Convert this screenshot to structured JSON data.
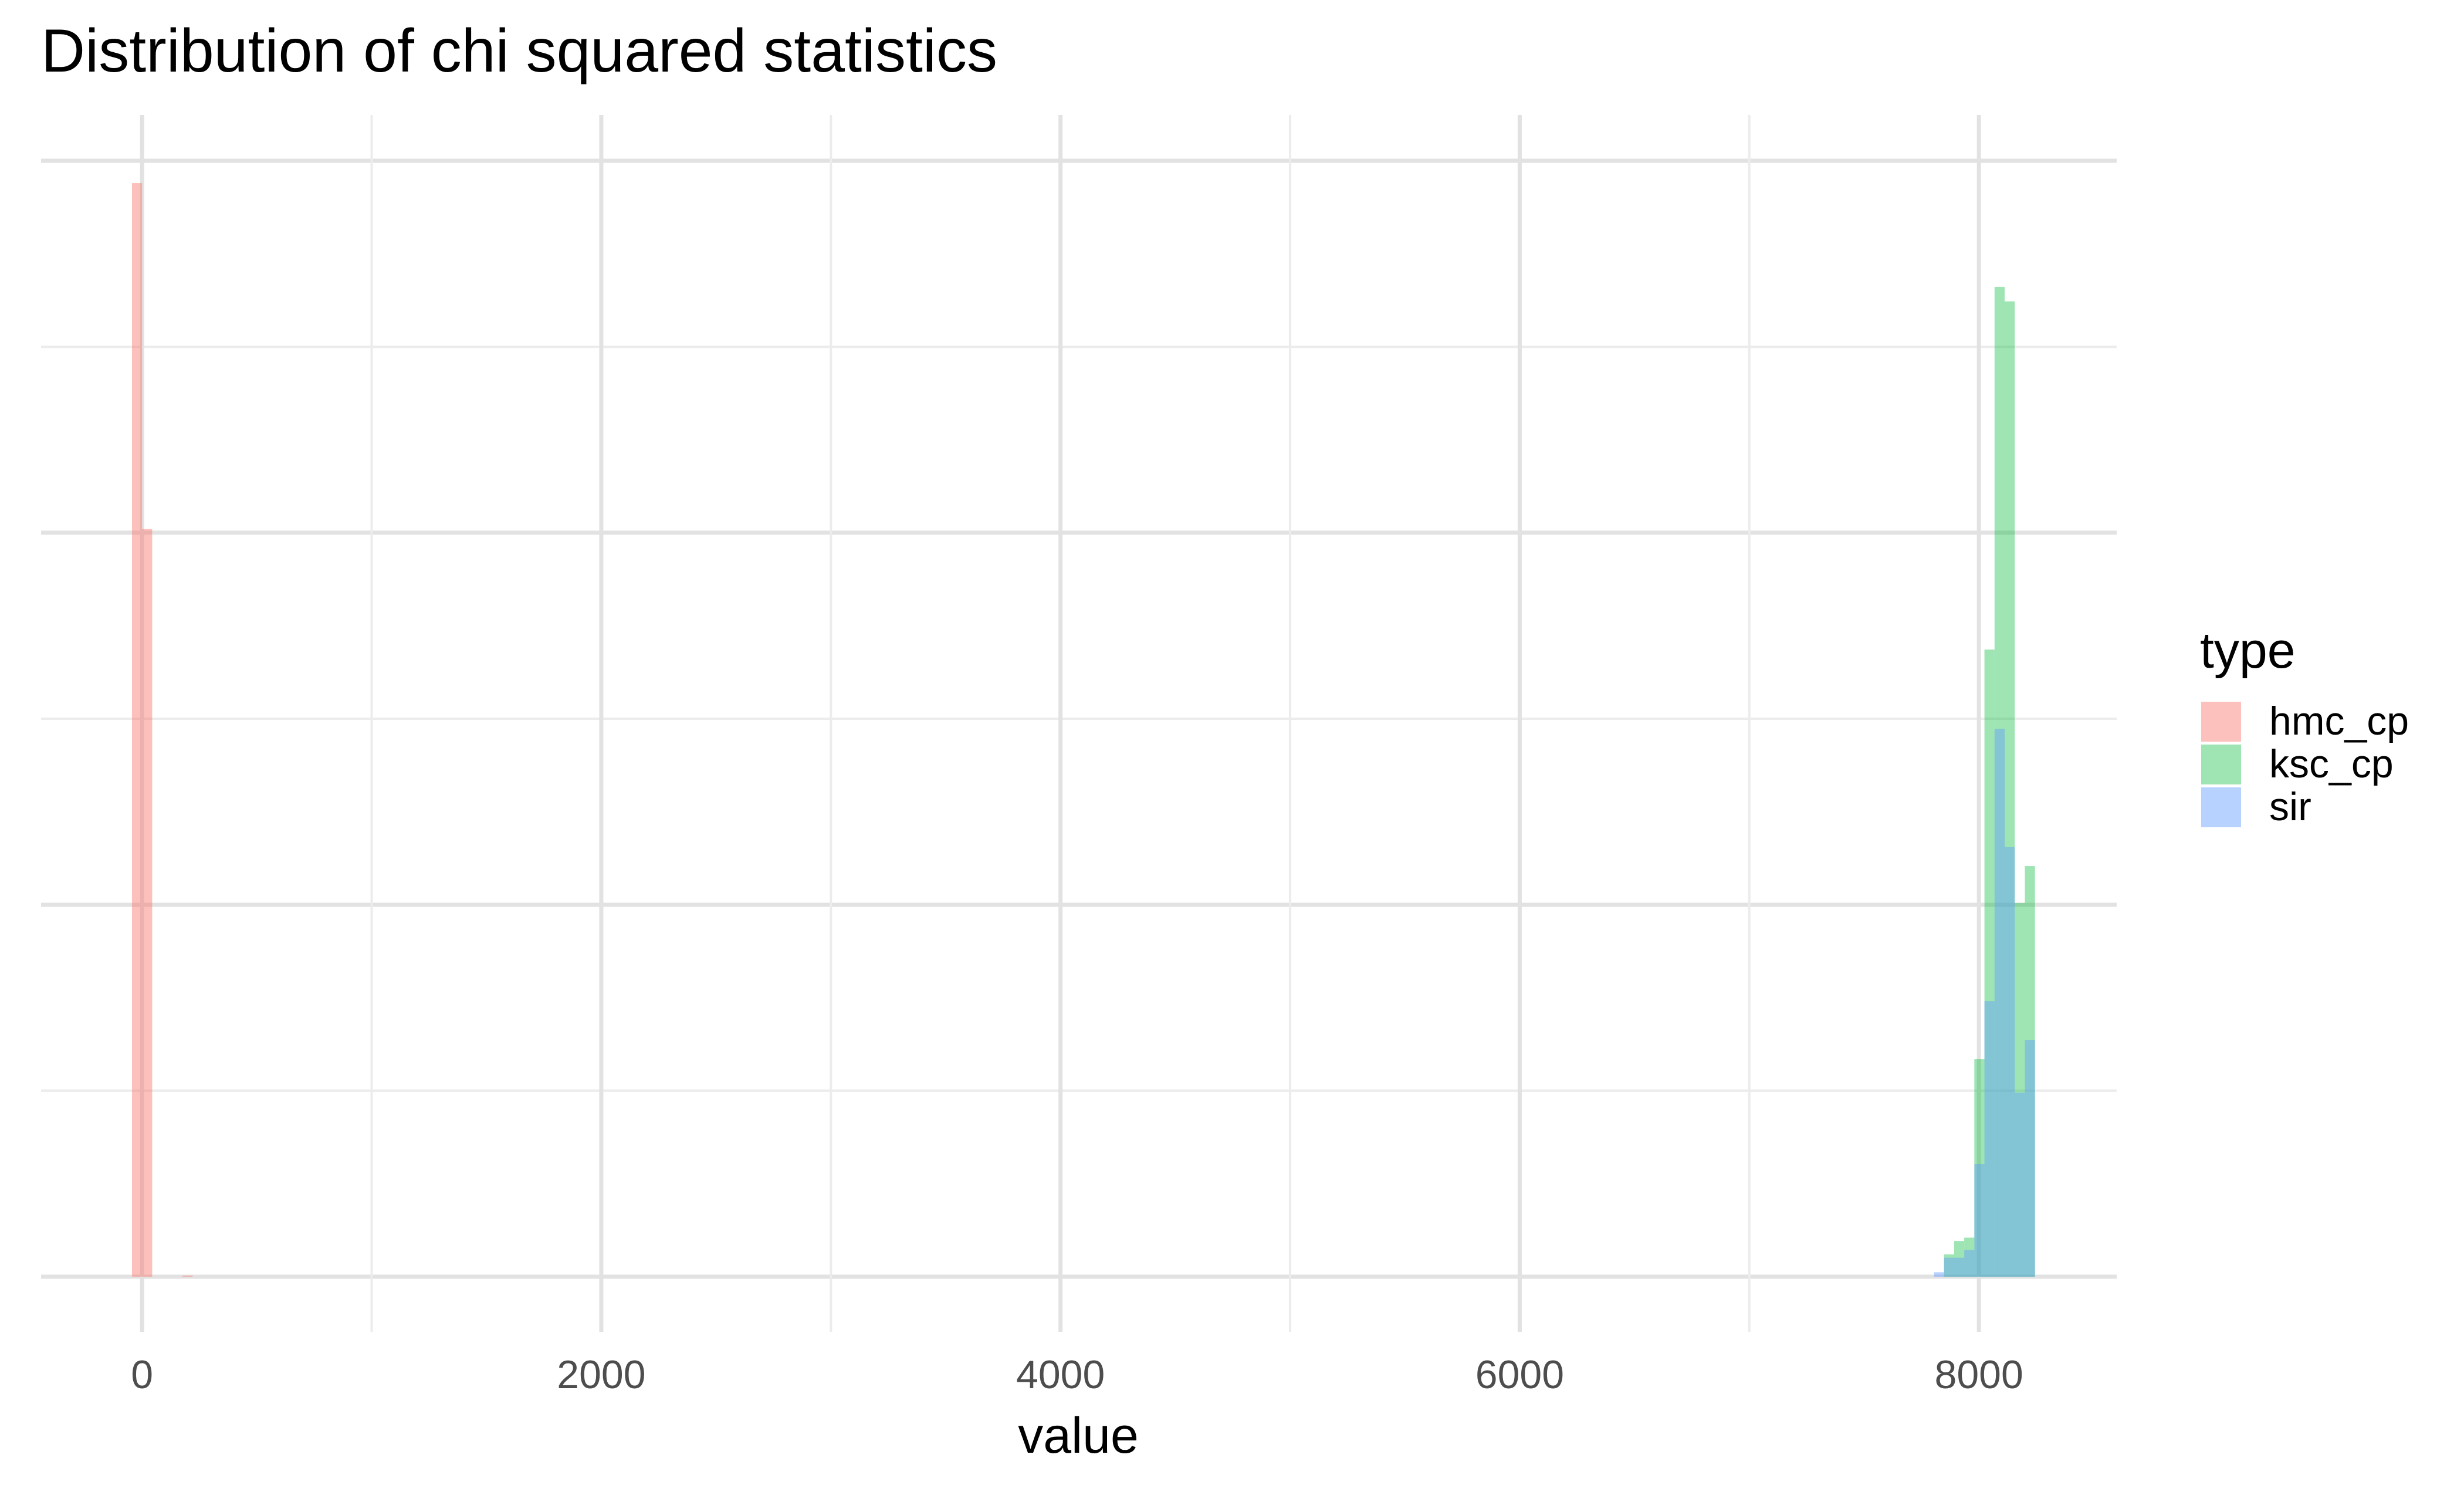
{
  "chart_data": {
    "type": "bar",
    "title": "Distribution of chi squared statistics",
    "xlabel": "value",
    "ylabel": "",
    "xlim": [
      -440,
      8600
    ],
    "ylim": [
      0,
      1
    ],
    "x_ticks": [
      0,
      2000,
      4000,
      6000,
      8000
    ],
    "x_tick_labels": [
      "0",
      "2000",
      "4000",
      "6000",
      "8000"
    ],
    "y_tick_labels_shown": false,
    "grid": true,
    "legend": {
      "title": "type",
      "position": "right"
    },
    "bin_width": 44,
    "series": [
      {
        "name": "hmc_cp",
        "color": "#F8766D",
        "opacity": 0.45,
        "bins": [
          {
            "x": -44,
            "count": 0.98
          },
          {
            "x": 0,
            "count": 0.67
          },
          {
            "x": 176,
            "count": 0.001
          }
        ]
      },
      {
        "name": "ksc_cp",
        "color": "#00BA38",
        "opacity": 0.38,
        "bins": [
          {
            "x": 7848,
            "count": 0.02
          },
          {
            "x": 7892,
            "count": 0.032
          },
          {
            "x": 7936,
            "count": 0.035
          },
          {
            "x": 7980,
            "count": 0.195
          },
          {
            "x": 8024,
            "count": 0.562
          },
          {
            "x": 8068,
            "count": 0.887
          },
          {
            "x": 8112,
            "count": 0.874
          },
          {
            "x": 8156,
            "count": 0.335
          },
          {
            "x": 8200,
            "count": 0.368
          }
        ]
      },
      {
        "name": "sir",
        "color": "#619CFF",
        "opacity": 0.45,
        "bins": [
          {
            "x": 7804,
            "count": 0.004
          },
          {
            "x": 7848,
            "count": 0.017
          },
          {
            "x": 7892,
            "count": 0.017
          },
          {
            "x": 7936,
            "count": 0.024
          },
          {
            "x": 7980,
            "count": 0.101
          },
          {
            "x": 8024,
            "count": 0.247
          },
          {
            "x": 8068,
            "count": 0.491
          },
          {
            "x": 8112,
            "count": 0.385
          },
          {
            "x": 8156,
            "count": 0.165
          },
          {
            "x": 8200,
            "count": 0.212
          }
        ]
      }
    ]
  }
}
